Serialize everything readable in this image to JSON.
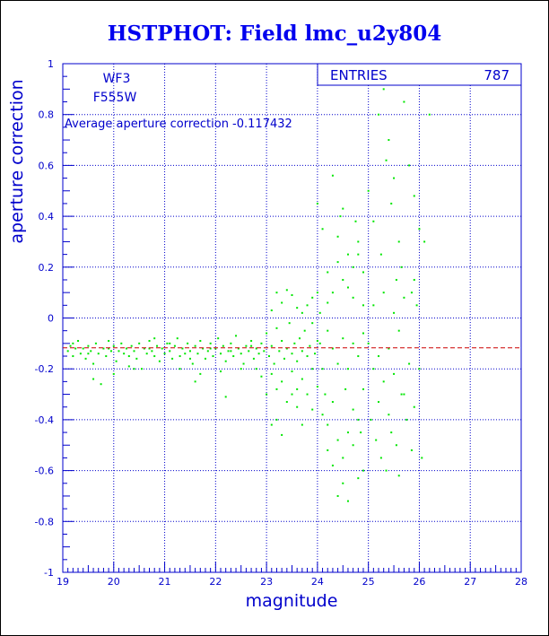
{
  "title": "HSTPHOT: Field lmc_u2y804",
  "chart_data": {
    "type": "scatter",
    "xlabel": "magnitude",
    "ylabel": "aperture correction",
    "xlim": [
      19,
      28
    ],
    "ylim": [
      -1,
      1
    ],
    "xticks": [
      "19",
      "20",
      "21",
      "22",
      "23",
      "24",
      "25",
      "26",
      "27",
      "28"
    ],
    "yticks": [
      "1",
      "0.8",
      "0.6",
      "0.4",
      "0.2",
      "0",
      "-0.2",
      "-0.4",
      "-0.6",
      "-0.8",
      "-1"
    ],
    "xtick_values": [
      19,
      20,
      21,
      22,
      23,
      24,
      25,
      26,
      27,
      28
    ],
    "ytick_values": [
      1,
      0.8,
      0.6,
      0.4,
      0.2,
      0,
      -0.2,
      -0.4,
      -0.6,
      -0.8,
      -1
    ],
    "grid": true,
    "annotations": {
      "chip": "WF3",
      "filter": "F555W",
      "average": "Average aperture correction -0.117432"
    },
    "stats_box": {
      "label": "ENTRIES",
      "value": "787"
    },
    "reference_line": {
      "y": -0.117432,
      "style": "dashed",
      "color": "#cc0000"
    },
    "point_color": "#00e600",
    "points": [
      [
        19.1,
        -0.13
      ],
      [
        19.15,
        -0.11
      ],
      [
        19.2,
        -0.15
      ],
      [
        19.25,
        -0.12
      ],
      [
        19.3,
        -0.09
      ],
      [
        19.35,
        -0.14
      ],
      [
        19.4,
        -0.12
      ],
      [
        19.45,
        -0.16
      ],
      [
        19.5,
        -0.11
      ],
      [
        19.55,
        -0.13
      ],
      [
        19.6,
        -0.18
      ],
      [
        19.65,
        -0.1
      ],
      [
        19.7,
        -0.14
      ],
      [
        19.75,
        -0.26
      ],
      [
        19.8,
        -0.12
      ],
      [
        19.85,
        -0.15
      ],
      [
        19.9,
        -0.09
      ],
      [
        19.95,
        -0.13
      ],
      [
        20.0,
        -0.11
      ],
      [
        20.05,
        -0.17
      ],
      [
        20.1,
        -0.13
      ],
      [
        20.15,
        -0.1
      ],
      [
        20.2,
        -0.14
      ],
      [
        20.25,
        -0.12
      ],
      [
        20.3,
        -0.19
      ],
      [
        20.35,
        -0.11
      ],
      [
        20.4,
        -0.13
      ],
      [
        20.45,
        -0.16
      ],
      [
        20.5,
        -0.1
      ],
      [
        20.55,
        -0.2
      ],
      [
        20.6,
        -0.12
      ],
      [
        20.65,
        -0.14
      ],
      [
        20.7,
        -0.09
      ],
      [
        20.75,
        -0.13
      ],
      [
        20.8,
        -0.15
      ],
      [
        20.85,
        -0.11
      ],
      [
        20.9,
        -0.17
      ],
      [
        20.95,
        -0.12
      ],
      [
        21.0,
        -0.14
      ],
      [
        21.05,
        -0.1
      ],
      [
        21.1,
        -0.13
      ],
      [
        21.15,
        -0.16
      ],
      [
        21.2,
        -0.11
      ],
      [
        21.25,
        -0.08
      ],
      [
        21.3,
        -0.15
      ],
      [
        21.35,
        -0.12
      ],
      [
        21.4,
        -0.14
      ],
      [
        21.45,
        -0.1
      ],
      [
        21.5,
        -0.13
      ],
      [
        21.55,
        -0.18
      ],
      [
        21.6,
        -0.11
      ],
      [
        21.65,
        -0.14
      ],
      [
        21.7,
        -0.09
      ],
      [
        21.75,
        -0.12
      ],
      [
        21.8,
        -0.16
      ],
      [
        21.85,
        -0.13
      ],
      [
        21.9,
        -0.1
      ],
      [
        21.95,
        -0.15
      ],
      [
        22.0,
        -0.12
      ],
      [
        22.05,
        -0.08
      ],
      [
        22.1,
        -0.14
      ],
      [
        22.15,
        -0.11
      ],
      [
        22.2,
        -0.17
      ],
      [
        22.25,
        -0.13
      ],
      [
        22.3,
        -0.1
      ],
      [
        22.35,
        -0.15
      ],
      [
        22.4,
        -0.07
      ],
      [
        22.45,
        -0.12
      ],
      [
        22.5,
        -0.14
      ],
      [
        22.55,
        -0.18
      ],
      [
        22.6,
        -0.11
      ],
      [
        22.65,
        -0.13
      ],
      [
        22.7,
        -0.09
      ],
      [
        22.75,
        -0.16
      ],
      [
        22.8,
        -0.12
      ],
      [
        22.85,
        -0.14
      ],
      [
        22.9,
        -0.1
      ],
      [
        22.95,
        -0.13
      ],
      [
        23.0,
        -0.06
      ],
      [
        23.05,
        -0.15
      ],
      [
        23.1,
        -0.11
      ],
      [
        23.15,
        -0.18
      ],
      [
        23.2,
        -0.04
      ],
      [
        23.25,
        -0.13
      ],
      [
        23.3,
        -0.09
      ],
      [
        23.35,
        -0.16
      ],
      [
        23.4,
        -0.12
      ],
      [
        23.45,
        -0.02
      ],
      [
        23.5,
        -0.14
      ],
      [
        23.55,
        -0.1
      ],
      [
        23.6,
        -0.17
      ],
      [
        23.65,
        -0.08
      ],
      [
        23.7,
        -0.13
      ],
      [
        23.75,
        -0.05
      ],
      [
        23.8,
        -0.15
      ],
      [
        23.85,
        -0.11
      ],
      [
        23.9,
        -0.02
      ],
      [
        23.95,
        -0.14
      ],
      [
        24.0,
        -0.09
      ],
      [
        24.05,
        0.02
      ],
      [
        19.2,
        -0.1
      ],
      [
        19.5,
        -0.14
      ],
      [
        19.9,
        -0.12
      ],
      [
        20.3,
        -0.15
      ],
      [
        20.7,
        -0.12
      ],
      [
        21.1,
        -0.1
      ],
      [
        21.5,
        -0.16
      ],
      [
        21.9,
        -0.12
      ],
      [
        22.3,
        -0.13
      ],
      [
        22.7,
        -0.11
      ],
      [
        20.0,
        -0.22
      ],
      [
        20.4,
        -0.2
      ],
      [
        20.8,
        -0.08
      ],
      [
        21.3,
        -0.2
      ],
      [
        21.7,
        -0.22
      ],
      [
        22.1,
        -0.21
      ],
      [
        22.5,
        -0.2
      ],
      [
        22.2,
        -0.31
      ],
      [
        21.6,
        -0.25
      ],
      [
        19.6,
        -0.24
      ],
      [
        22.8,
        -0.2
      ],
      [
        22.9,
        -0.23
      ],
      [
        23.1,
        -0.22
      ],
      [
        23.3,
        -0.25
      ],
      [
        23.5,
        -0.21
      ],
      [
        23.7,
        -0.24
      ],
      [
        23.9,
        -0.2
      ],
      [
        23.2,
        -0.28
      ],
      [
        23.6,
        -0.28
      ],
      [
        23.8,
        -0.3
      ],
      [
        23.0,
        -0.3
      ],
      [
        23.4,
        -0.33
      ],
      [
        23.9,
        -0.36
      ],
      [
        23.1,
        -0.42
      ],
      [
        23.3,
        -0.46
      ],
      [
        23.7,
        -0.42
      ],
      [
        24.0,
        -0.27
      ],
      [
        23.6,
        -0.35
      ],
      [
        23.2,
        -0.4
      ],
      [
        23.5,
        -0.3
      ],
      [
        23.1,
        0.03
      ],
      [
        23.3,
        0.06
      ],
      [
        23.5,
        0.09
      ],
      [
        23.7,
        0.02
      ],
      [
        23.9,
        0.08
      ],
      [
        23.8,
        0.05
      ],
      [
        23.4,
        0.11
      ],
      [
        23.6,
        0.04
      ],
      [
        23.2,
        0.1
      ],
      [
        24.0,
        0.1
      ],
      [
        24.0,
        0.45
      ],
      [
        24.1,
        0.35
      ],
      [
        24.2,
        0.18
      ],
      [
        24.3,
        0.56
      ],
      [
        24.4,
        0.32
      ],
      [
        24.5,
        0.43
      ],
      [
        24.6,
        0.25
      ],
      [
        24.7,
        0.08
      ],
      [
        24.8,
        0.3
      ],
      [
        24.9,
        0.18
      ],
      [
        24.2,
        -0.05
      ],
      [
        24.3,
        -0.12
      ],
      [
        24.4,
        -0.18
      ],
      [
        24.5,
        -0.08
      ],
      [
        24.6,
        -0.2
      ],
      [
        24.7,
        -0.1
      ],
      [
        24.8,
        -0.15
      ],
      [
        24.9,
        -0.06
      ],
      [
        24.1,
        -0.2
      ],
      [
        24.05,
        -0.1
      ],
      [
        24.1,
        -0.38
      ],
      [
        24.2,
        -0.42
      ],
      [
        24.3,
        -0.33
      ],
      [
        24.4,
        -0.48
      ],
      [
        24.5,
        -0.55
      ],
      [
        24.6,
        -0.45
      ],
      [
        24.7,
        -0.36
      ],
      [
        24.8,
        -0.4
      ],
      [
        24.9,
        -0.6
      ],
      [
        24.5,
        -0.65
      ],
      [
        24.4,
        -0.7
      ],
      [
        24.6,
        -0.72
      ],
      [
        24.8,
        -0.63
      ],
      [
        24.3,
        -0.58
      ],
      [
        24.7,
        -0.5
      ],
      [
        24.2,
        -0.52
      ],
      [
        24.9,
        -0.28
      ],
      [
        24.85,
        -0.45
      ],
      [
        24.55,
        -0.28
      ],
      [
        24.15,
        -0.3
      ],
      [
        24.3,
        0.1
      ],
      [
        24.5,
        0.15
      ],
      [
        24.7,
        0.2
      ],
      [
        24.9,
        0.05
      ],
      [
        24.4,
        0.22
      ],
      [
        24.6,
        0.12
      ],
      [
        24.8,
        0.25
      ],
      [
        24.2,
        0.06
      ],
      [
        24.45,
        0.4
      ],
      [
        24.75,
        0.38
      ],
      [
        25.0,
        0.5
      ],
      [
        25.1,
        0.38
      ],
      [
        25.2,
        0.8
      ],
      [
        25.3,
        0.9
      ],
      [
        25.35,
        0.62
      ],
      [
        25.4,
        0.7
      ],
      [
        25.5,
        0.55
      ],
      [
        25.6,
        0.3
      ],
      [
        25.7,
        0.85
      ],
      [
        25.8,
        0.6
      ],
      [
        25.9,
        0.48
      ],
      [
        26.0,
        0.35
      ],
      [
        25.75,
        0.98
      ],
      [
        25.45,
        0.45
      ],
      [
        25.25,
        0.25
      ],
      [
        25.55,
        0.15
      ],
      [
        25.65,
        0.2
      ],
      [
        25.85,
        0.1
      ],
      [
        25.95,
        0.05
      ],
      [
        26.1,
        0.3
      ],
      [
        25.0,
        -0.1
      ],
      [
        25.1,
        -0.2
      ],
      [
        25.2,
        -0.15
      ],
      [
        25.3,
        -0.25
      ],
      [
        25.4,
        -0.12
      ],
      [
        25.5,
        -0.22
      ],
      [
        25.6,
        -0.05
      ],
      [
        25.7,
        -0.3
      ],
      [
        25.8,
        -0.18
      ],
      [
        25.9,
        -0.35
      ],
      [
        25.05,
        -0.4
      ],
      [
        25.15,
        -0.48
      ],
      [
        25.25,
        -0.55
      ],
      [
        25.35,
        -0.6
      ],
      [
        25.45,
        -0.45
      ],
      [
        25.55,
        -0.5
      ],
      [
        25.65,
        -0.3
      ],
      [
        25.75,
        -0.4
      ],
      [
        25.85,
        -0.52
      ],
      [
        26.05,
        -0.55
      ],
      [
        25.1,
        0.05
      ],
      [
        25.3,
        0.1
      ],
      [
        25.5,
        0.02
      ],
      [
        25.7,
        0.08
      ],
      [
        25.9,
        0.15
      ],
      [
        26.2,
        0.8
      ],
      [
        26.0,
        -0.2
      ],
      [
        25.2,
        -0.33
      ],
      [
        25.4,
        -0.38
      ],
      [
        25.6,
        -0.62
      ]
    ]
  }
}
